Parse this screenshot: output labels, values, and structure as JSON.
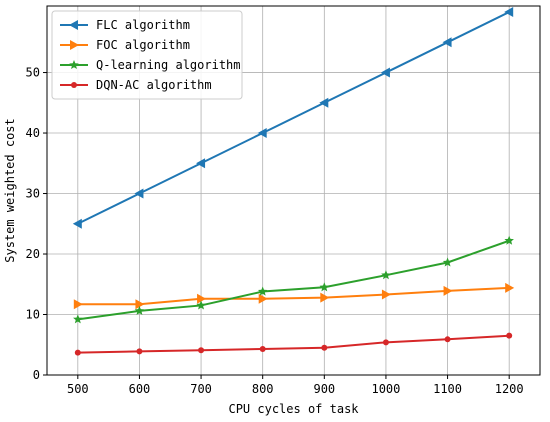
{
  "chart_data": {
    "type": "line",
    "title": "",
    "xlabel": "CPU cycles of task",
    "ylabel": "System weighted cost",
    "x": [
      500,
      600,
      700,
      800,
      900,
      1000,
      1100,
      1200
    ],
    "xlim": [
      450,
      1250
    ],
    "ylim": [
      0,
      61
    ],
    "xticks": [
      500,
      600,
      700,
      800,
      900,
      1000,
      1100,
      1200
    ],
    "yticks": [
      0,
      10,
      20,
      30,
      40,
      50
    ],
    "grid": true,
    "legend_position": "top-left",
    "series": [
      {
        "name": "FLC algorithm",
        "color": "#1f77b4",
        "marker": "triangle-left",
        "values": [
          25,
          30,
          35,
          40,
          45,
          50,
          55,
          60
        ]
      },
      {
        "name": "FOC algorithm",
        "color": "#ff7f0e",
        "marker": "triangle-right",
        "values": [
          11.7,
          11.7,
          12.6,
          12.6,
          12.8,
          13.3,
          13.9,
          14.4
        ]
      },
      {
        "name": "Q-learning algorithm",
        "color": "#2ca02c",
        "marker": "star",
        "values": [
          9.2,
          10.6,
          11.5,
          13.8,
          14.5,
          16.5,
          18.6,
          22.2
        ]
      },
      {
        "name": "DQN-AC algorithm",
        "color": "#d62728",
        "marker": "circle",
        "values": [
          3.7,
          3.9,
          4.1,
          4.3,
          4.5,
          5.4,
          5.9,
          6.5
        ]
      }
    ]
  }
}
